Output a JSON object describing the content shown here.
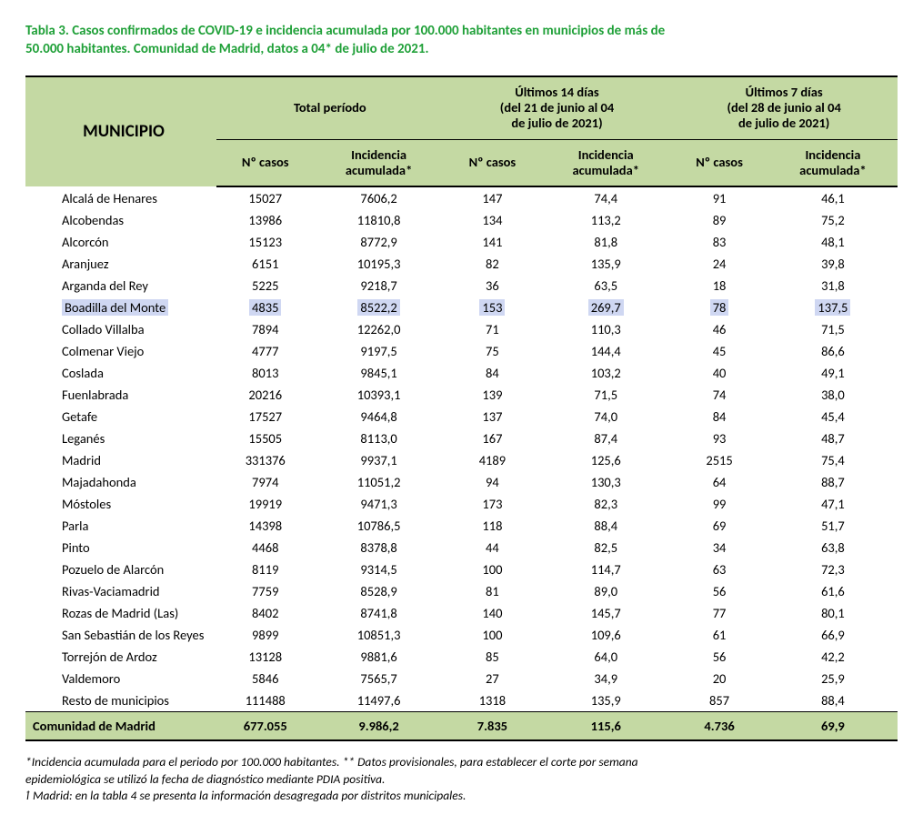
{
  "colors": {
    "title": "#1fa038",
    "header_bg": "#c4d9a3",
    "total_bg": "#c4d9a3",
    "highlight_bg": "#cfd7f2",
    "border": "#000000",
    "text": "#000000"
  },
  "title_line1": "Tabla 3. Casos confirmados de COVID-19 e incidencia acumulada por 100.000 habitantes en municipios de más de",
  "title_line2": "50.000 habitantes. Comunidad de Madrid, datos a 04* de julio de 2021.",
  "header": {
    "municipio": "MUNICIPIO",
    "total_periodo": "Total período",
    "ult14_line1": "Últimos 14 días",
    "ult14_line2": "(del 21 de junio al 04",
    "ult14_line3": "de julio de 2021)",
    "ult7_line1": "Últimos 7 días",
    "ult7_line2": "(del 28 de junio al 04",
    "ult7_line3": "de julio de 2021)",
    "n_casos": "Nº casos",
    "incidencia_line1": "Incidencia",
    "incidencia_line2": "acumulada*"
  },
  "rows": [
    {
      "muni": "Alcalá de Henares",
      "c1": "15027",
      "c2": "7606,2",
      "c3": "147",
      "c4": "74,4",
      "c5": "91",
      "c6": "46,1",
      "hl": false
    },
    {
      "muni": "Alcobendas",
      "c1": "13986",
      "c2": "11810,8",
      "c3": "134",
      "c4": "113,2",
      "c5": "89",
      "c6": "75,2",
      "hl": false
    },
    {
      "muni": "Alcorcón",
      "c1": "15123",
      "c2": "8772,9",
      "c3": "141",
      "c4": "81,8",
      "c5": "83",
      "c6": "48,1",
      "hl": false
    },
    {
      "muni": "Aranjuez",
      "c1": "6151",
      "c2": "10195,3",
      "c3": "82",
      "c4": "135,9",
      "c5": "24",
      "c6": "39,8",
      "hl": false
    },
    {
      "muni": "Arganda del Rey",
      "c1": "5225",
      "c2": "9218,7",
      "c3": "36",
      "c4": "63,5",
      "c5": "18",
      "c6": "31,8",
      "hl": false
    },
    {
      "muni": "Boadilla del Monte",
      "c1": "4835",
      "c2": "8522,2",
      "c3": "153",
      "c4": "269,7",
      "c5": "78",
      "c6": "137,5",
      "hl": true
    },
    {
      "muni": "Collado Villalba",
      "c1": "7894",
      "c2": "12262,0",
      "c3": "71",
      "c4": "110,3",
      "c5": "46",
      "c6": "71,5",
      "hl": false
    },
    {
      "muni": "Colmenar Viejo",
      "c1": "4777",
      "c2": "9197,5",
      "c3": "75",
      "c4": "144,4",
      "c5": "45",
      "c6": "86,6",
      "hl": false
    },
    {
      "muni": "Coslada",
      "c1": "8013",
      "c2": "9845,1",
      "c3": "84",
      "c4": "103,2",
      "c5": "40",
      "c6": "49,1",
      "hl": false
    },
    {
      "muni": "Fuenlabrada",
      "c1": "20216",
      "c2": "10393,1",
      "c3": "139",
      "c4": "71,5",
      "c5": "74",
      "c6": "38,0",
      "hl": false
    },
    {
      "muni": "Getafe",
      "c1": "17527",
      "c2": "9464,8",
      "c3": "137",
      "c4": "74,0",
      "c5": "84",
      "c6": "45,4",
      "hl": false
    },
    {
      "muni": "Leganés",
      "c1": "15505",
      "c2": "8113,0",
      "c3": "167",
      "c4": "87,4",
      "c5": "93",
      "c6": "48,7",
      "hl": false
    },
    {
      "muni": "Madrid",
      "c1": "331376",
      "c2": "9937,1",
      "c3": "4189",
      "c4": "125,6",
      "c5": "2515",
      "c6": "75,4",
      "hl": false
    },
    {
      "muni": "Majadahonda",
      "c1": "7974",
      "c2": "11051,2",
      "c3": "94",
      "c4": "130,3",
      "c5": "64",
      "c6": "88,7",
      "hl": false
    },
    {
      "muni": "Móstoles",
      "c1": "19919",
      "c2": "9471,3",
      "c3": "173",
      "c4": "82,3",
      "c5": "99",
      "c6": "47,1",
      "hl": false
    },
    {
      "muni": "Parla",
      "c1": "14398",
      "c2": "10786,5",
      "c3": "118",
      "c4": "88,4",
      "c5": "69",
      "c6": "51,7",
      "hl": false
    },
    {
      "muni": "Pinto",
      "c1": "4468",
      "c2": "8378,8",
      "c3": "44",
      "c4": "82,5",
      "c5": "34",
      "c6": "63,8",
      "hl": false
    },
    {
      "muni": "Pozuelo de Alarcón",
      "c1": "8119",
      "c2": "9314,5",
      "c3": "100",
      "c4": "114,7",
      "c5": "63",
      "c6": "72,3",
      "hl": false
    },
    {
      "muni": "Rivas-Vaciamadrid",
      "c1": "7759",
      "c2": "8528,9",
      "c3": "81",
      "c4": "89,0",
      "c5": "56",
      "c6": "61,6",
      "hl": false
    },
    {
      "muni": "Rozas de Madrid (Las)",
      "c1": "8402",
      "c2": "8741,8",
      "c3": "140",
      "c4": "145,7",
      "c5": "77",
      "c6": "80,1",
      "hl": false
    },
    {
      "muni": "San Sebastián de los Reyes",
      "c1": "9899",
      "c2": "10851,3",
      "c3": "100",
      "c4": "109,6",
      "c5": "61",
      "c6": "66,9",
      "hl": false
    },
    {
      "muni": "Torrejón de Ardoz",
      "c1": "13128",
      "c2": "9881,6",
      "c3": "85",
      "c4": "64,0",
      "c5": "56",
      "c6": "42,2",
      "hl": false
    },
    {
      "muni": "Valdemoro",
      "c1": "5846",
      "c2": "7565,7",
      "c3": "27",
      "c4": "34,9",
      "c5": "20",
      "c6": "25,9",
      "hl": false
    },
    {
      "muni": "Resto de municipios",
      "c1": "111488",
      "c2": "11497,6",
      "c3": "1318",
      "c4": "135,9",
      "c5": "857",
      "c6": "88,4",
      "hl": false
    }
  ],
  "total": {
    "muni": "Comunidad de Madrid",
    "c1": "677.055",
    "c2": "9.986,2",
    "c3": "7.835",
    "c4": "115,6",
    "c5": "4.736",
    "c6": "69,9"
  },
  "footnotes": {
    "f1": "*Incidencia acumulada para el periodo por 100.000 habitantes. ** Datos provisionales, para establecer el corte por semana",
    "f2": "epidemiológica se utilizó la fecha de diagnóstico mediante PDIA positiva.",
    "f3": "ɫ Madrid: en la tabla 4 se presenta la información desagregada por distritos municipales."
  }
}
